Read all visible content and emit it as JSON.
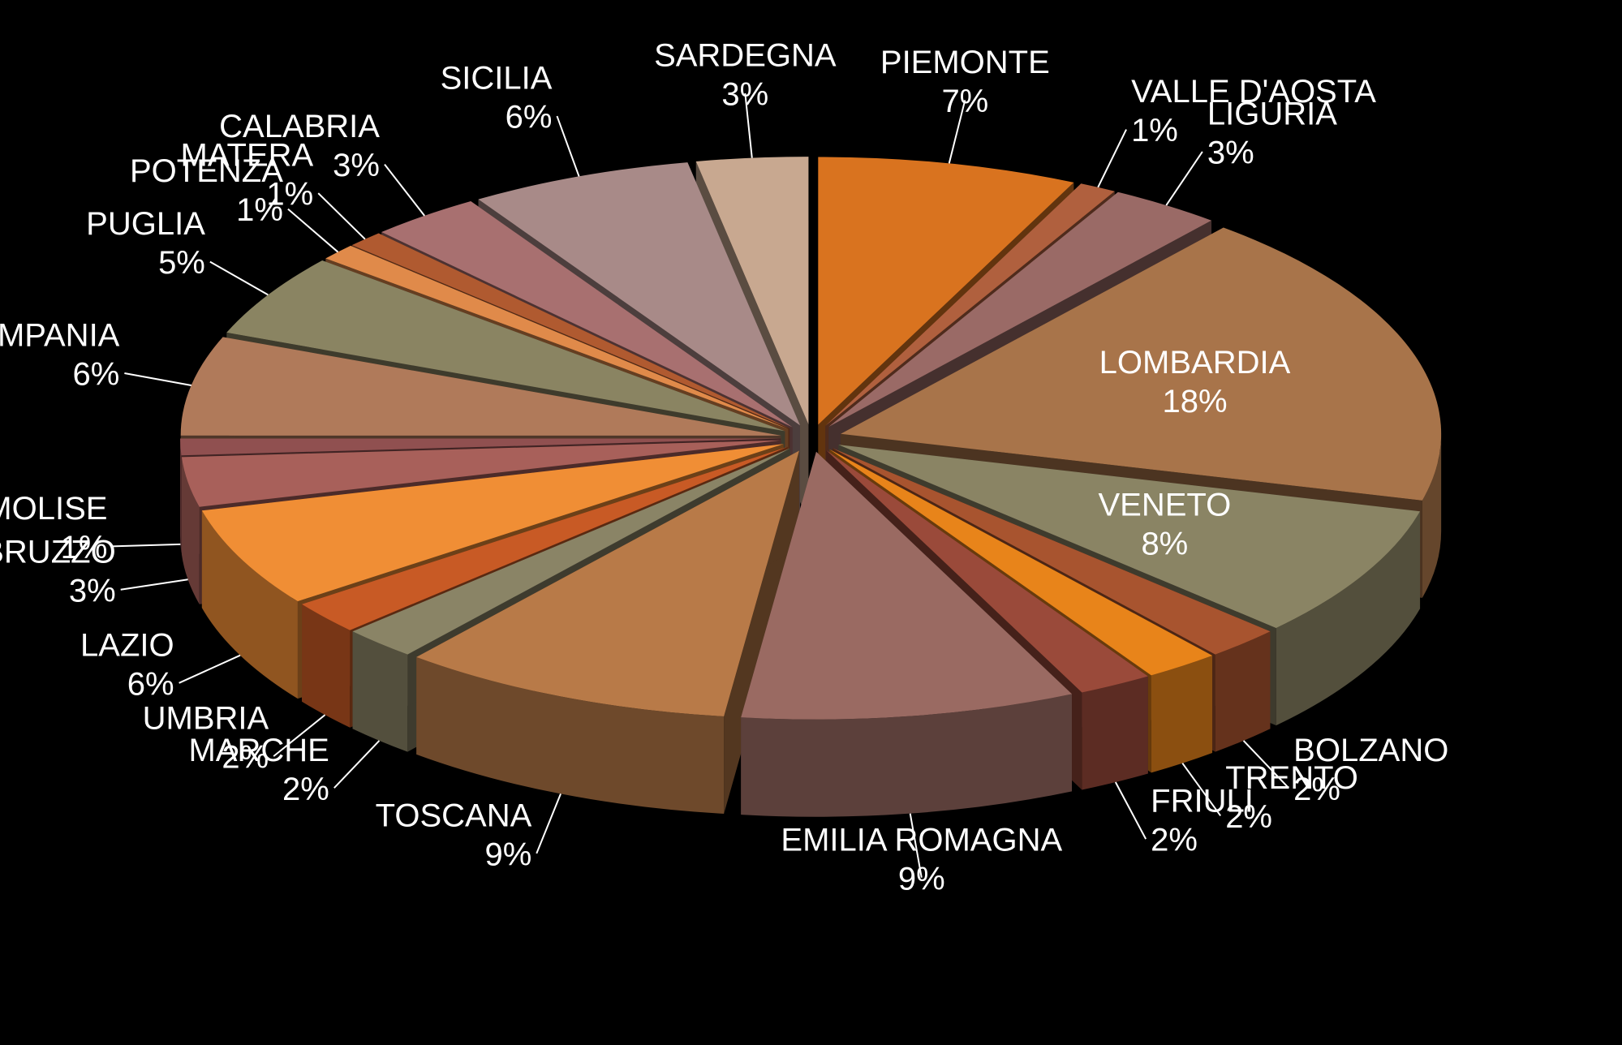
{
  "chart_data": {
    "type": "pie3d",
    "categories": [
      "PIEMONTE",
      "VALLE D'AOSTA",
      "LIGURIA",
      "LOMBARDIA",
      "VENETO",
      "BOLZANO",
      "TRENTO",
      "FRIULI",
      "EMILIA ROMAGNA",
      "TOSCANA",
      "MARCHE",
      "UMBRIA",
      "LAZIO",
      "ABRUZZO",
      "MOLISE",
      "CAMPANIA",
      "PUGLIA",
      "POTENZA",
      "MATERA",
      "CALABRIA",
      "SICILIA",
      "SARDEGNA"
    ],
    "values": [
      7,
      1,
      3,
      18,
      8,
      2,
      2,
      2,
      9,
      9,
      2,
      2,
      6,
      3,
      1,
      6,
      5,
      1,
      1,
      3,
      6,
      3
    ],
    "value_labels": [
      "7%",
      "1%",
      "3%",
      "18%",
      "8%",
      "2%",
      "2%",
      "2%",
      "9%",
      "9%",
      "2%",
      "2%",
      "6%",
      "3%",
      "1%",
      "6%",
      "5%",
      "1%",
      "1%",
      "3%",
      "6%",
      "3%"
    ],
    "colors": [
      "#d9731f",
      "#b0603e",
      "#9a6a66",
      "#a8744a",
      "#8a8464",
      "#a8542f",
      "#e8841a",
      "#9a4a3a",
      "#9a6a62",
      "#b87a48",
      "#8a8466",
      "#c85a25",
      "#f08e35",
      "#a8605a",
      "#905050",
      "#b07a5a",
      "#8a8462",
      "#e08a4a",
      "#b05a30",
      "#a87070",
      "#a88a88",
      "#c8a890"
    ]
  }
}
